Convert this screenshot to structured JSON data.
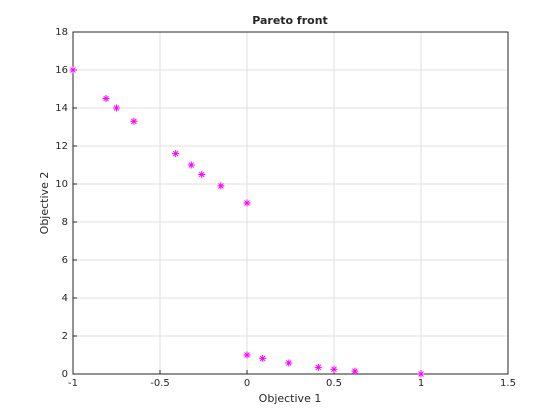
{
  "chart_data": {
    "type": "scatter",
    "title": "Pareto front",
    "x_label": "Objective 1",
    "y_label": "Objective 2",
    "series": [
      {
        "name": "Pareto front",
        "color": "#ff00ff",
        "marker": "asterisk",
        "x": [
          -1,
          -0.81,
          -0.75,
          -0.65,
          -0.41,
          -0.32,
          -0.26,
          -0.15,
          0,
          0,
          0.09,
          0.24,
          0.41,
          0.5,
          0.62,
          1
        ],
        "values": [
          16,
          14.5,
          14,
          13.3,
          11.6,
          11,
          10.5,
          9.9,
          9,
          1,
          0.82,
          0.58,
          0.35,
          0.25,
          0.15,
          0
        ]
      }
    ],
    "xlim": [
      -1,
      1.5
    ],
    "xticks": [
      -1,
      -0.5,
      0,
      0.5,
      1,
      1.5
    ],
    "ylim": [
      0,
      18
    ],
    "yticks": [
      0,
      2,
      4,
      6,
      8,
      10,
      12,
      14,
      16,
      18
    ],
    "grid": true
  }
}
